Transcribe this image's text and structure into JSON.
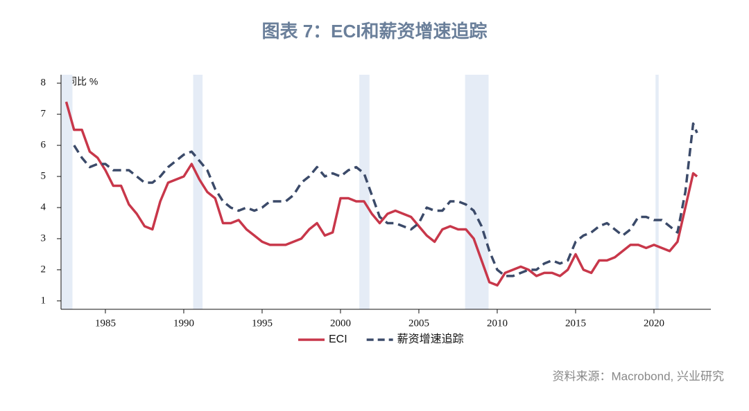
{
  "chart_data": {
    "type": "line",
    "title": "图表 7：ECI和薪资增速追踪",
    "y_label": "同比 %",
    "source": "资料来源：Macrobond, 兴业研究",
    "x": [
      1982.5,
      1983.0,
      1983.5,
      1984.0,
      1984.5,
      1985.0,
      1985.5,
      1986.0,
      1986.5,
      1987.0,
      1987.5,
      1988.0,
      1988.5,
      1989.0,
      1989.5,
      1990.0,
      1990.5,
      1991.0,
      1991.5,
      1992.0,
      1992.5,
      1993.0,
      1993.5,
      1994.0,
      1994.5,
      1995.0,
      1995.5,
      1996.0,
      1996.5,
      1997.0,
      1997.5,
      1998.0,
      1998.5,
      1999.0,
      1999.5,
      2000.0,
      2000.5,
      2001.0,
      2001.5,
      2002.0,
      2002.5,
      2003.0,
      2003.5,
      2004.0,
      2004.5,
      2005.0,
      2005.5,
      2006.0,
      2006.5,
      2007.0,
      2007.5,
      2008.0,
      2008.5,
      2009.0,
      2009.5,
      2010.0,
      2010.5,
      2011.0,
      2011.5,
      2012.0,
      2012.5,
      2013.0,
      2013.5,
      2014.0,
      2014.5,
      2015.0,
      2015.5,
      2016.0,
      2016.5,
      2017.0,
      2017.5,
      2018.0,
      2018.5,
      2019.0,
      2019.5,
      2020.0,
      2020.5,
      2021.0,
      2021.5,
      2022.0,
      2022.5,
      2022.75
    ],
    "series": [
      {
        "name": "ECI",
        "color": "#c8374a",
        "dash": false,
        "values": [
          7.4,
          6.5,
          6.5,
          5.8,
          5.6,
          5.2,
          4.7,
          4.7,
          4.1,
          3.8,
          3.4,
          3.3,
          4.2,
          4.8,
          4.9,
          5.0,
          5.4,
          4.9,
          4.5,
          4.3,
          3.5,
          3.5,
          3.6,
          3.3,
          3.1,
          2.9,
          2.8,
          2.8,
          2.8,
          2.9,
          3.0,
          3.3,
          3.5,
          3.1,
          3.2,
          4.3,
          4.3,
          4.2,
          4.2,
          3.8,
          3.5,
          3.8,
          3.9,
          3.8,
          3.7,
          3.4,
          3.1,
          2.9,
          3.3,
          3.4,
          3.3,
          3.3,
          3.0,
          2.3,
          1.6,
          1.5,
          1.9,
          2.0,
          2.1,
          2.0,
          1.8,
          1.9,
          1.9,
          1.8,
          2.0,
          2.5,
          2.0,
          1.9,
          2.3,
          2.3,
          2.4,
          2.6,
          2.8,
          2.8,
          2.7,
          2.8,
          2.7,
          2.6,
          2.9,
          4.0,
          5.1,
          5.0
        ]
      },
      {
        "name": "薪资增速追踪",
        "color": "#3b4a69",
        "dash": true,
        "values": [
          null,
          6.0,
          5.6,
          5.3,
          5.4,
          5.4,
          5.2,
          5.2,
          5.2,
          5.0,
          4.8,
          4.8,
          5.0,
          5.3,
          5.5,
          5.7,
          5.8,
          5.5,
          5.2,
          4.6,
          4.2,
          4.0,
          3.9,
          4.0,
          3.9,
          4.0,
          4.2,
          4.2,
          4.2,
          4.4,
          4.8,
          5.0,
          5.3,
          5.0,
          5.1,
          5.0,
          5.2,
          5.3,
          5.1,
          4.4,
          3.7,
          3.5,
          3.5,
          3.4,
          3.3,
          3.5,
          4.0,
          3.9,
          3.9,
          4.2,
          4.2,
          4.1,
          3.9,
          3.4,
          2.6,
          2.0,
          1.8,
          1.8,
          1.9,
          2.0,
          2.0,
          2.2,
          2.3,
          2.2,
          2.3,
          2.9,
          3.1,
          3.2,
          3.4,
          3.5,
          3.3,
          3.1,
          3.3,
          3.7,
          3.7,
          3.6,
          3.6,
          3.4,
          3.2,
          4.5,
          6.7,
          6.4
        ]
      }
    ],
    "shaded_periods": [
      [
        1982.2,
        1982.9
      ],
      [
        1990.6,
        1991.2
      ],
      [
        2001.2,
        2001.85
      ],
      [
        2007.95,
        2009.45
      ],
      [
        2020.1,
        2020.3
      ]
    ],
    "shade_color": "#e5ecf6",
    "xlim": [
      1982.17,
      2023.63
    ],
    "xticks": [
      1985,
      1990,
      1995,
      2000,
      2005,
      2010,
      2015,
      2020
    ],
    "ylim": [
      0.73,
      8.27
    ],
    "yticks": [
      1,
      2,
      3,
      4,
      5,
      6,
      7,
      8
    ],
    "grid": false,
    "legend": "bottom"
  }
}
